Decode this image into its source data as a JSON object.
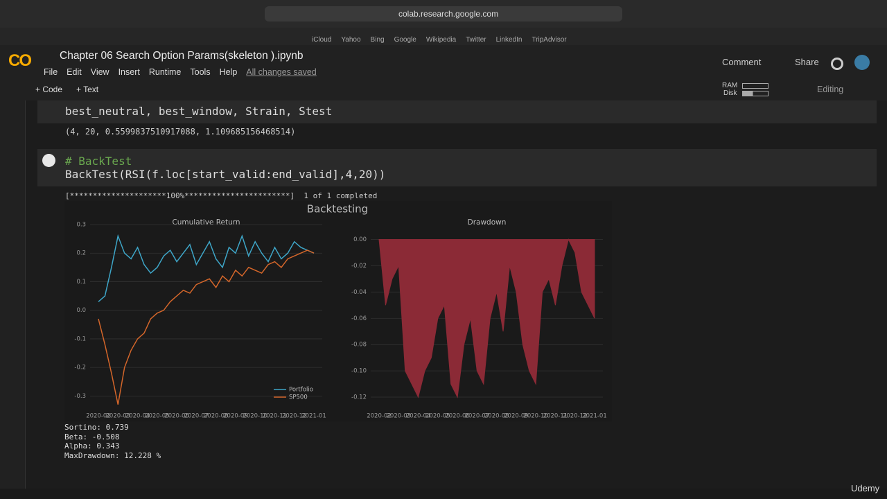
{
  "browser": {
    "url": "colab.research.google.com",
    "bookmarks": [
      "iCloud",
      "Yahoo",
      "Bing",
      "Google",
      "Wikipedia",
      "Twitter",
      "LinkedIn",
      "TripAdvisor"
    ]
  },
  "header": {
    "logo": "CO",
    "title": "Chapter 06 Search Option Params(skeleton ).ipynb",
    "menu": [
      "File",
      "Edit",
      "View",
      "Insert",
      "Runtime",
      "Tools",
      "Help"
    ],
    "saved": "All changes saved",
    "comment": "Comment",
    "share": "Share"
  },
  "toolbar": {
    "code": "+ Code",
    "text": "+ Text",
    "ram": "RAM",
    "disk": "Disk",
    "editing": "Editing"
  },
  "cells": [
    {
      "code": [
        "best_neutral, best_window, Strain, Stest"
      ],
      "output": "(4, 20, 0.5599837510917088, 1.109685156468514)"
    },
    {
      "code": [
        "# BackTest",
        "BackTest(RSI(f.loc[start_valid:end_valid],4,20))"
      ],
      "progress": "[*********************100%***********************]  1 of 1 completed",
      "figure_title": "Backtesting",
      "stats": [
        "Sortino: 0.739",
        "Beta: -0.508",
        "Alpha: 0.343",
        "MaxDrawdown: 12.228 %"
      ]
    }
  ],
  "watermark": "Udemy",
  "chart_data": [
    {
      "type": "line",
      "title": "Cumulative Return",
      "x": [
        "2020-02",
        null,
        null,
        "2020-03",
        null,
        null,
        "2020-04",
        null,
        null,
        "2020-05",
        null,
        null,
        "2020-06",
        null,
        null,
        "2020-07",
        null,
        null,
        "2020-08",
        null,
        null,
        "2020-09",
        null,
        null,
        "2020-10",
        null,
        null,
        "2020-11",
        null,
        null,
        "2020-12",
        null,
        null,
        "2021-01"
      ],
      "series": [
        {
          "name": "Portfolio",
          "color": "#3ea6c8",
          "values": [
            0.03,
            0.05,
            0.15,
            0.26,
            0.2,
            0.18,
            0.22,
            0.16,
            0.13,
            0.15,
            0.19,
            0.21,
            0.17,
            0.2,
            0.23,
            0.16,
            0.2,
            0.24,
            0.18,
            0.15,
            0.22,
            0.2,
            0.26,
            0.19,
            0.24,
            0.2,
            0.17,
            0.22,
            0.18,
            0.2,
            0.24,
            0.22,
            0.21,
            0.2
          ]
        },
        {
          "name": "SP500",
          "color": "#d4662a",
          "values": [
            -0.03,
            -0.12,
            -0.22,
            -0.33,
            -0.2,
            -0.14,
            -0.1,
            -0.08,
            -0.03,
            -0.01,
            0.0,
            0.03,
            0.05,
            0.07,
            0.06,
            0.09,
            0.1,
            0.11,
            0.08,
            0.12,
            0.1,
            0.14,
            0.12,
            0.15,
            0.14,
            0.13,
            0.16,
            0.17,
            0.15,
            0.18,
            0.19,
            0.2,
            0.21,
            0.2
          ]
        }
      ],
      "ylim": [
        -0.35,
        0.3
      ],
      "yticks": [
        -0.3,
        -0.2,
        -0.1,
        {
          "value": 0,
          "label": "0.0"
        },
        0.1,
        0.2,
        0.3
      ],
      "grid": true,
      "legend": "lower right"
    },
    {
      "type": "area",
      "title": "Drawdown",
      "x": [
        "2020-02",
        null,
        null,
        "2020-03",
        null,
        null,
        "2020-04",
        null,
        null,
        "2020-05",
        null,
        null,
        "2020-06",
        null,
        null,
        "2020-07",
        null,
        null,
        "2020-08",
        null,
        null,
        "2020-09",
        null,
        null,
        "2020-10",
        null,
        null,
        "2020-11",
        null,
        null,
        "2020-12",
        null,
        null,
        "2021-01"
      ],
      "color": "#8b2a36",
      "values": [
        0,
        -0.05,
        -0.03,
        -0.02,
        -0.1,
        -0.11,
        -0.12,
        -0.1,
        -0.09,
        -0.06,
        -0.05,
        -0.11,
        -0.12,
        -0.08,
        -0.06,
        -0.1,
        -0.11,
        -0.06,
        -0.04,
        -0.07,
        -0.02,
        -0.04,
        -0.08,
        -0.1,
        -0.11,
        -0.04,
        -0.03,
        -0.05,
        -0.02,
        0,
        -0.01,
        -0.04,
        -0.05,
        -0.06
      ],
      "ylim": [
        -0.13,
        0.005
      ],
      "yticks": [
        {
          "value": 0,
          "label": "0.00"
        },
        -0.02,
        -0.04,
        -0.06,
        -0.08,
        {
          "value": -0.1,
          "label": "-0.10"
        },
        -0.12
      ],
      "grid": true
    }
  ]
}
